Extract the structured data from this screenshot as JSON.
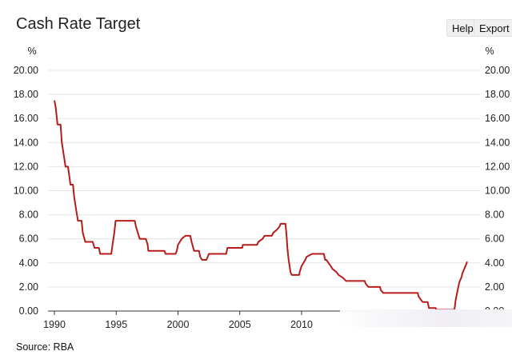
{
  "header": {
    "title": "Cash Rate Target",
    "help_label": "Help",
    "export_label": "Export"
  },
  "footer": {
    "source": "Source: RBA"
  },
  "chart_data": {
    "type": "line",
    "title": "Cash Rate Target",
    "ylabel_left": "%",
    "ylabel_right": "%",
    "xlim": [
      1990,
      2023.1
    ],
    "ylim": [
      0,
      20
    ],
    "yticks": [
      "0.00",
      "2.00",
      "4.00",
      "6.00",
      "8.00",
      "10.00",
      "12.00",
      "14.00",
      "16.00",
      "18.00",
      "20.00"
    ],
    "xticks": [
      "1990",
      "1995",
      "2000",
      "2005",
      "2010"
    ],
    "grid": true,
    "legend": "none",
    "colors": {
      "line": "#b71c1c",
      "grid": "#e4e4e4",
      "axis": "#333333"
    },
    "series": [
      {
        "values": [
          [
            1990.0,
            17.5
          ],
          [
            1990.1,
            17.0
          ],
          [
            1990.25,
            15.5
          ],
          [
            1990.5,
            15.5
          ],
          [
            1990.6,
            14.0
          ],
          [
            1990.75,
            13.0
          ],
          [
            1990.9,
            12.0
          ],
          [
            1991.1,
            12.0
          ],
          [
            1991.3,
            10.5
          ],
          [
            1991.5,
            10.5
          ],
          [
            1991.6,
            9.5
          ],
          [
            1991.75,
            8.5
          ],
          [
            1991.9,
            7.5
          ],
          [
            1992.2,
            7.5
          ],
          [
            1992.3,
            6.5
          ],
          [
            1992.5,
            5.75
          ],
          [
            1993.1,
            5.75
          ],
          [
            1993.25,
            5.25
          ],
          [
            1993.6,
            5.25
          ],
          [
            1993.7,
            4.75
          ],
          [
            1994.6,
            4.75
          ],
          [
            1994.7,
            5.5
          ],
          [
            1994.85,
            6.5
          ],
          [
            1994.95,
            7.5
          ],
          [
            1996.5,
            7.5
          ],
          [
            1996.6,
            7.0
          ],
          [
            1996.75,
            6.5
          ],
          [
            1996.9,
            6.0
          ],
          [
            1997.4,
            6.0
          ],
          [
            1997.55,
            5.5
          ],
          [
            1997.6,
            5.0
          ],
          [
            1998.9,
            5.0
          ],
          [
            1999.0,
            4.75
          ],
          [
            1999.8,
            4.75
          ],
          [
            1999.9,
            5.0
          ],
          [
            2000.0,
            5.5
          ],
          [
            2000.15,
            5.75
          ],
          [
            2000.3,
            6.0
          ],
          [
            2000.6,
            6.25
          ],
          [
            2001.0,
            6.25
          ],
          [
            2001.1,
            5.75
          ],
          [
            2001.3,
            5.0
          ],
          [
            2001.7,
            5.0
          ],
          [
            2001.8,
            4.5
          ],
          [
            2001.95,
            4.25
          ],
          [
            2002.3,
            4.25
          ],
          [
            2002.4,
            4.5
          ],
          [
            2002.5,
            4.75
          ],
          [
            2003.9,
            4.75
          ],
          [
            2003.95,
            5.0
          ],
          [
            2004.0,
            5.25
          ],
          [
            2005.2,
            5.25
          ],
          [
            2005.25,
            5.5
          ],
          [
            2006.4,
            5.5
          ],
          [
            2006.5,
            5.75
          ],
          [
            2006.85,
            6.0
          ],
          [
            2007.0,
            6.25
          ],
          [
            2007.6,
            6.25
          ],
          [
            2007.7,
            6.5
          ],
          [
            2008.0,
            6.75
          ],
          [
            2008.2,
            7.0
          ],
          [
            2008.3,
            7.25
          ],
          [
            2008.7,
            7.25
          ],
          [
            2008.8,
            6.0
          ],
          [
            2008.85,
            5.25
          ],
          [
            2008.95,
            4.25
          ],
          [
            2009.1,
            3.25
          ],
          [
            2009.2,
            3.0
          ],
          [
            2009.8,
            3.0
          ],
          [
            2009.85,
            3.25
          ],
          [
            2010.0,
            3.75
          ],
          [
            2010.3,
            4.25
          ],
          [
            2010.4,
            4.5
          ],
          [
            2010.85,
            4.75
          ],
          [
            2011.8,
            4.75
          ],
          [
            2011.9,
            4.25
          ],
          [
            2012.0,
            4.25
          ],
          [
            2012.35,
            3.75
          ],
          [
            2012.5,
            3.5
          ],
          [
            2012.8,
            3.25
          ],
          [
            2013.0,
            3.0
          ],
          [
            2013.35,
            2.75
          ],
          [
            2013.6,
            2.5
          ],
          [
            2015.1,
            2.5
          ],
          [
            2015.2,
            2.25
          ],
          [
            2015.4,
            2.0
          ],
          [
            2016.35,
            2.0
          ],
          [
            2016.4,
            1.75
          ],
          [
            2016.6,
            1.5
          ],
          [
            2019.4,
            1.5
          ],
          [
            2019.45,
            1.25
          ],
          [
            2019.6,
            1.0
          ],
          [
            2019.8,
            0.75
          ],
          [
            2020.2,
            0.75
          ],
          [
            2020.25,
            0.5
          ],
          [
            2020.3,
            0.25
          ],
          [
            2020.85,
            0.25
          ],
          [
            2020.9,
            0.1
          ],
          [
            2022.35,
            0.1
          ],
          [
            2022.4,
            0.35
          ],
          [
            2022.45,
            0.85
          ],
          [
            2022.55,
            1.35
          ],
          [
            2022.65,
            1.85
          ],
          [
            2022.75,
            2.35
          ],
          [
            2022.85,
            2.6
          ],
          [
            2022.95,
            2.85
          ],
          [
            2023.0,
            3.1
          ],
          [
            2023.1,
            3.35
          ],
          [
            2023.2,
            3.6
          ],
          [
            2023.3,
            3.85
          ],
          [
            2023.4,
            4.1
          ]
        ]
      }
    ]
  }
}
